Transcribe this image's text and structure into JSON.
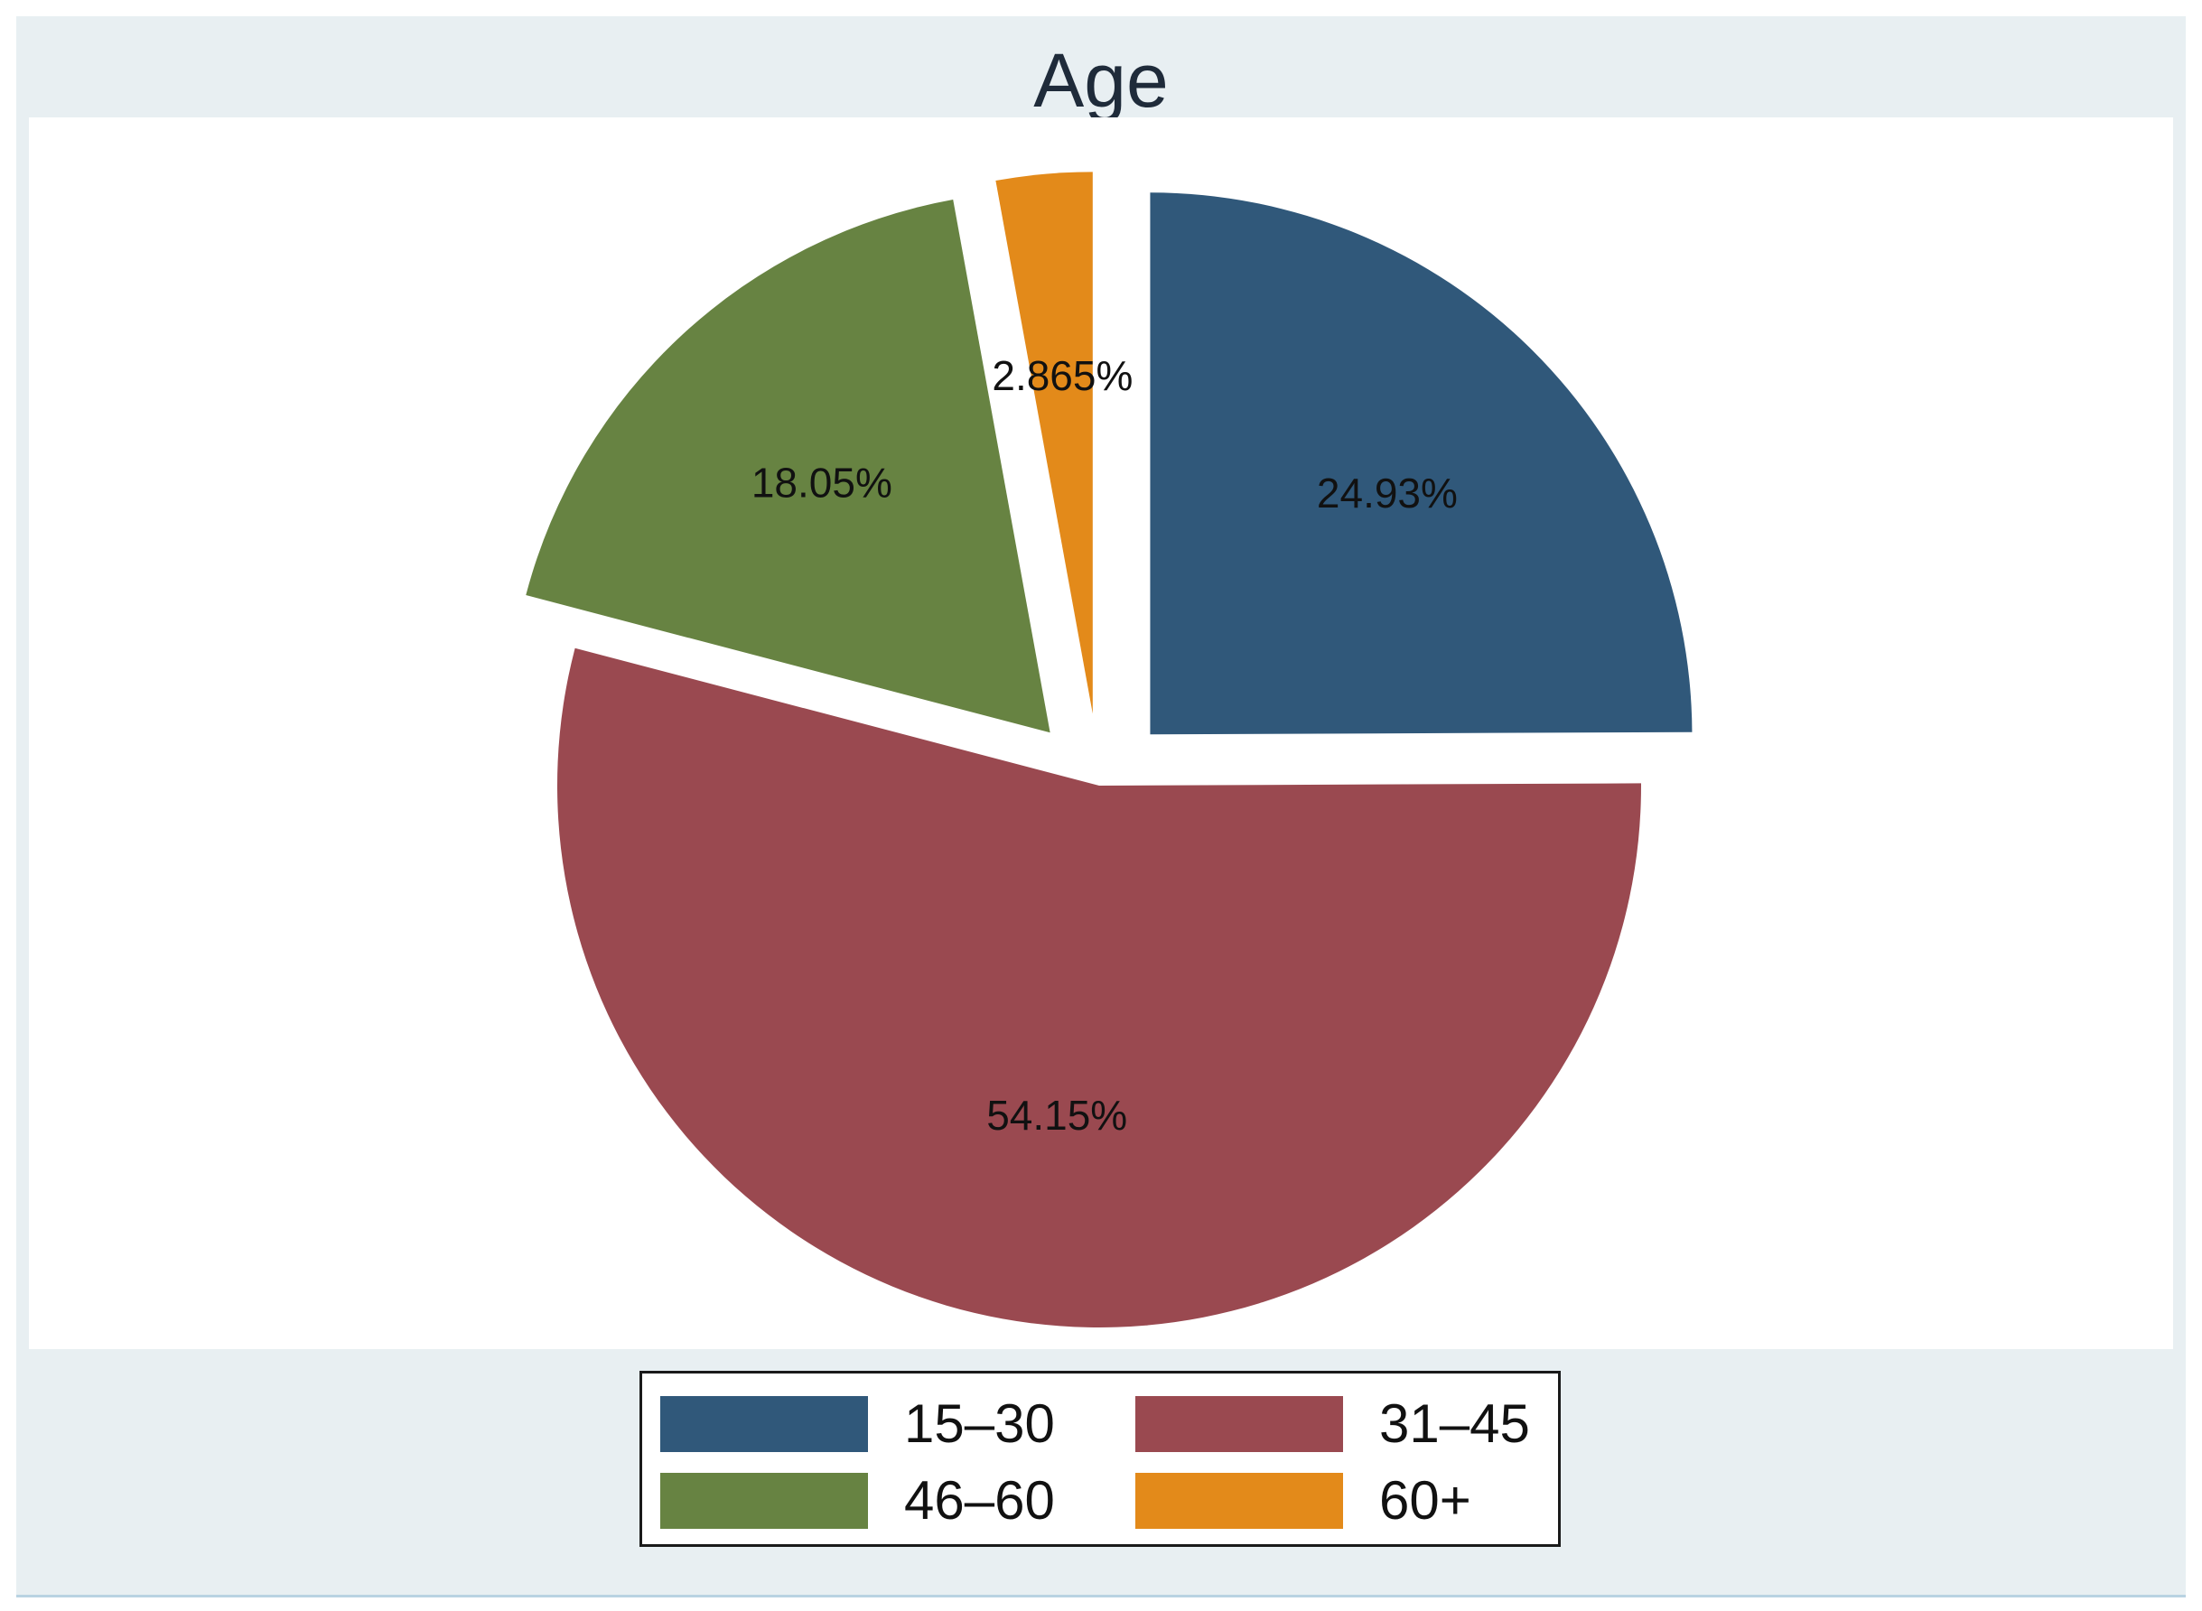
{
  "chart_data": {
    "type": "pie",
    "title": "Age",
    "slices": [
      {
        "label": "15–30",
        "value": 24.93,
        "display": "24.93%",
        "color": "#30587a",
        "exploded": true
      },
      {
        "label": "31–45",
        "value": 54.15,
        "display": "54.15%",
        "color": "#9a4950",
        "exploded": false
      },
      {
        "label": "46–60",
        "value": 18.05,
        "display": "18.05%",
        "color": "#678342",
        "exploded": true
      },
      {
        "label": "60+",
        "value": 2.865,
        "display": "2.865%",
        "color": "#e38a1a",
        "exploded": true
      }
    ],
    "legend": {
      "position": "bottom",
      "items": [
        "15–30",
        "31–45",
        "46–60",
        "60+"
      ]
    }
  }
}
